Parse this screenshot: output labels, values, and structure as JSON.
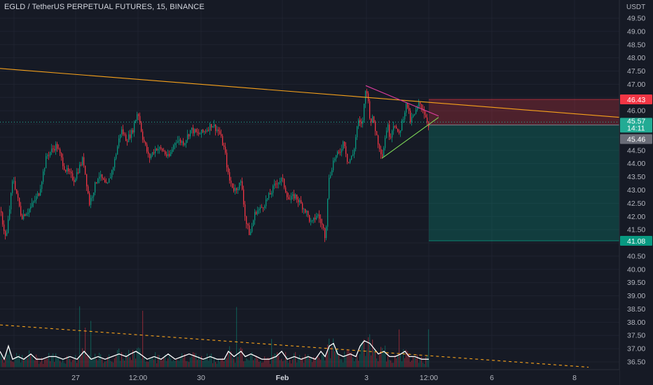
{
  "header": {
    "title": "EGLD / TetherUS PERPETUAL FUTURES, 15, BINANCE"
  },
  "chart_data": {
    "type": "candlestick",
    "title": "EGLD / TetherUS PERPETUAL FUTURES, 15, BINANCE",
    "currency": "USDT",
    "y_ticks": [
      "36.50",
      "37.00",
      "37.50",
      "38.00",
      "38.50",
      "39.00",
      "39.50",
      "40.00",
      "40.50",
      "41.00",
      "41.50",
      "42.00",
      "42.50",
      "43.00",
      "43.50",
      "44.00",
      "44.50",
      "45.00",
      "45.50",
      "46.00",
      "46.50",
      "47.00",
      "47.50",
      "48.00",
      "48.50",
      "49.00",
      "49.50"
    ],
    "ylim": [
      36.3,
      49.75
    ],
    "x_ticks": [
      "27",
      "12:00",
      "30",
      "Feb",
      "3",
      "12:00",
      "6",
      "8"
    ],
    "price_labels": [
      {
        "value": "46.43",
        "color": "#f23645",
        "kind": "stop"
      },
      {
        "value": "45.57",
        "color": "#22ab94",
        "kind": "last"
      },
      {
        "value": "14:11",
        "color": "#22ab94",
        "kind": "countdown"
      },
      {
        "value": "45.46",
        "color": "#6a6d78",
        "kind": "entry"
      },
      {
        "value": "41.08",
        "color": "#089981",
        "kind": "target"
      }
    ],
    "price_path": [
      [
        0,
        42.2
      ],
      [
        8,
        41.1
      ],
      [
        18,
        43.5
      ],
      [
        30,
        42.0
      ],
      [
        42,
        42.3
      ],
      [
        55,
        42.9
      ],
      [
        66,
        44.3
      ],
      [
        80,
        44.7
      ],
      [
        92,
        43.8
      ],
      [
        105,
        43.4
      ],
      [
        118,
        44.2
      ],
      [
        127,
        42.5
      ],
      [
        140,
        43.6
      ],
      [
        152,
        43.1
      ],
      [
        162,
        44.0
      ],
      [
        172,
        45.3
      ],
      [
        180,
        44.9
      ],
      [
        188,
        45.2
      ],
      [
        196,
        46.0
      ],
      [
        203,
        45.0
      ],
      [
        212,
        44.2
      ],
      [
        222,
        44.6
      ],
      [
        232,
        44.5
      ],
      [
        240,
        44.2
      ],
      [
        250,
        44.9
      ],
      [
        262,
        44.8
      ],
      [
        272,
        45.3
      ],
      [
        282,
        45.1
      ],
      [
        290,
        45.2
      ],
      [
        302,
        45.5
      ],
      [
        312,
        45.2
      ],
      [
        320,
        44.5
      ],
      [
        326,
        43.4
      ],
      [
        334,
        43.0
      ],
      [
        344,
        43.3
      ],
      [
        350,
        41.8
      ],
      [
        356,
        41.3
      ],
      [
        364,
        42.2
      ],
      [
        372,
        42.3
      ],
      [
        384,
        42.8
      ],
      [
        394,
        43.3
      ],
      [
        402,
        43.4
      ],
      [
        412,
        42.6
      ],
      [
        420,
        42.8
      ],
      [
        428,
        42.5
      ],
      [
        436,
        42.2
      ],
      [
        444,
        41.7
      ],
      [
        452,
        42.1
      ],
      [
        460,
        41.6
      ],
      [
        464,
        41.2
      ],
      [
        468,
        43.3
      ],
      [
        476,
        44.2
      ],
      [
        484,
        44.4
      ],
      [
        490,
        44.9
      ],
      [
        496,
        44.0
      ],
      [
        504,
        44.4
      ],
      [
        510,
        45.6
      ],
      [
        516,
        45.4
      ],
      [
        522,
        47.0
      ],
      [
        528,
        45.6
      ],
      [
        532,
        45.7
      ],
      [
        538,
        44.9
      ],
      [
        545,
        44.3
      ],
      [
        552,
        45.5
      ],
      [
        556,
        45.0
      ],
      [
        562,
        45.6
      ],
      [
        568,
        45.0
      ],
      [
        575,
        45.8
      ],
      [
        580,
        46.3
      ],
      [
        585,
        45.6
      ],
      [
        592,
        45.9
      ],
      [
        598,
        46.3
      ],
      [
        604,
        46.0
      ],
      [
        608,
        45.7
      ],
      [
        612,
        45.4
      ]
    ],
    "volume_path": [
      [
        0,
        36.9
      ],
      [
        6,
        36.6
      ],
      [
        12,
        37.1
      ],
      [
        18,
        36.6
      ],
      [
        26,
        36.7
      ],
      [
        34,
        36.6
      ],
      [
        44,
        36.8
      ],
      [
        52,
        36.6
      ],
      [
        60,
        36.6
      ],
      [
        70,
        36.7
      ],
      [
        80,
        36.7
      ],
      [
        90,
        36.6
      ],
      [
        100,
        36.7
      ],
      [
        110,
        36.6
      ],
      [
        120,
        36.9
      ],
      [
        130,
        36.6
      ],
      [
        140,
        36.7
      ],
      [
        150,
        36.6
      ],
      [
        160,
        36.7
      ],
      [
        170,
        36.8
      ],
      [
        180,
        36.7
      ],
      [
        186,
        36.8
      ],
      [
        194,
        36.9
      ],
      [
        200,
        36.8
      ],
      [
        210,
        36.6
      ],
      [
        220,
        36.7
      ],
      [
        230,
        36.6
      ],
      [
        240,
        36.8
      ],
      [
        250,
        36.6
      ],
      [
        260,
        36.7
      ],
      [
        270,
        36.8
      ],
      [
        280,
        36.7
      ],
      [
        290,
        36.6
      ],
      [
        300,
        36.7
      ],
      [
        310,
        36.6
      ],
      [
        320,
        36.6
      ],
      [
        326,
        36.9
      ],
      [
        334,
        36.7
      ],
      [
        344,
        36.9
      ],
      [
        350,
        36.7
      ],
      [
        358,
        36.8
      ],
      [
        366,
        36.7
      ],
      [
        374,
        36.6
      ],
      [
        384,
        36.6
      ],
      [
        394,
        36.7
      ],
      [
        402,
        36.9
      ],
      [
        410,
        36.6
      ],
      [
        420,
        36.7
      ],
      [
        430,
        36.6
      ],
      [
        440,
        36.7
      ],
      [
        450,
        36.6
      ],
      [
        458,
        36.9
      ],
      [
        464,
        36.7
      ],
      [
        470,
        37.1
      ],
      [
        476,
        37.2
      ],
      [
        482,
        36.8
      ],
      [
        490,
        36.7
      ],
      [
        500,
        36.8
      ],
      [
        508,
        36.7
      ],
      [
        514,
        37.1
      ],
      [
        520,
        37.3
      ],
      [
        528,
        37.2
      ],
      [
        534,
        37.0
      ],
      [
        540,
        36.8
      ],
      [
        548,
        36.9
      ],
      [
        556,
        36.7
      ],
      [
        564,
        36.7
      ],
      [
        572,
        36.8
      ],
      [
        578,
        36.9
      ],
      [
        584,
        36.7
      ],
      [
        592,
        36.7
      ],
      [
        602,
        36.6
      ],
      [
        612,
        36.6
      ]
    ],
    "trendlines": [
      {
        "name": "resistance",
        "color": "#f7a21b",
        "points": [
          [
            0,
            47.6
          ],
          [
            932,
            45.65
          ]
        ],
        "style": "solid"
      },
      {
        "name": "triangle-upper",
        "color": "#e03ea0",
        "points": [
          [
            522,
            46.95
          ],
          [
            626,
            45.8
          ]
        ],
        "style": "solid"
      },
      {
        "name": "triangle-lower",
        "color": "#7ed957",
        "points": [
          [
            545,
            44.2
          ],
          [
            626,
            45.75
          ]
        ],
        "style": "solid"
      },
      {
        "name": "volume-trend",
        "color": "#f7a21b",
        "points": [
          [
            0,
            37.9
          ],
          [
            840,
            36.3
          ]
        ],
        "style": "dashed"
      }
    ],
    "position": {
      "entry": 45.46,
      "stop": 46.43,
      "target": 41.08,
      "x_start": 612
    },
    "grid": true
  }
}
